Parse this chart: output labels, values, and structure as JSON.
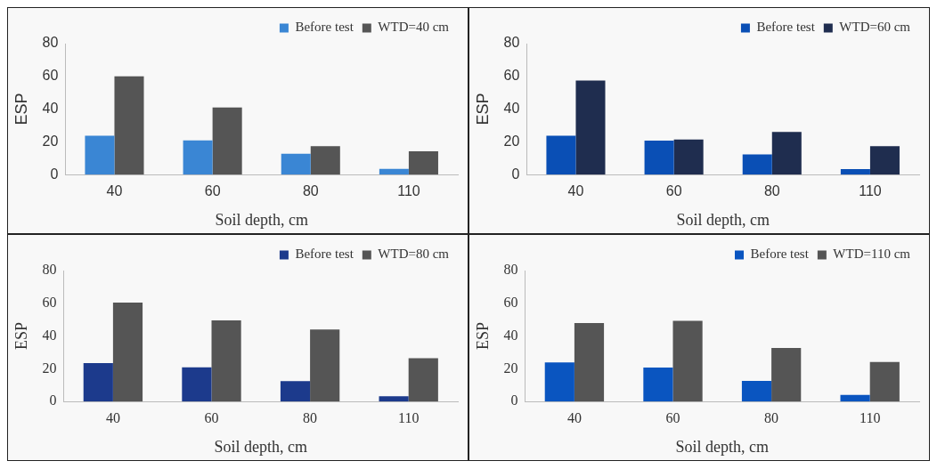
{
  "chart_data": [
    {
      "type": "bar",
      "categories": [
        "40",
        "60",
        "80",
        "110"
      ],
      "xlabel": "Soil depth, cm",
      "ylabel": "ESP",
      "ylim": [
        0,
        80
      ],
      "yticks": [
        0,
        20,
        40,
        60,
        80
      ],
      "grid": false,
      "legend": "top right",
      "series": [
        {
          "name": "Before test",
          "color": "#3a86d4",
          "values": [
            23.7,
            20.9,
            12.7,
            3.5
          ]
        },
        {
          "name": "WTD=40 cm",
          "color": "#555555",
          "values": [
            60,
            41,
            17.4,
            14.2
          ]
        }
      ]
    },
    {
      "type": "bar",
      "categories": [
        "40",
        "60",
        "80",
        "110"
      ],
      "xlabel": "Soil depth, cm",
      "ylabel": "ESP",
      "ylim": [
        0,
        80
      ],
      "yticks": [
        0,
        20,
        40,
        60,
        80
      ],
      "grid": false,
      "legend": "top right",
      "series": [
        {
          "name": "Before test",
          "color": "#0a4fb5",
          "values": [
            23.8,
            20.8,
            12.4,
            3.4
          ]
        },
        {
          "name": "WTD=60 cm",
          "color": "#1f2d4f",
          "values": [
            57.5,
            21.5,
            26,
            17.3
          ]
        }
      ]
    },
    {
      "type": "bar",
      "categories": [
        "40",
        "60",
        "80",
        "110"
      ],
      "xlabel": "Soil depth, cm",
      "ylabel": "ESP",
      "ylim": [
        0,
        80
      ],
      "yticks": [
        0,
        20,
        40,
        60,
        80
      ],
      "grid": false,
      "legend": "top right",
      "series": [
        {
          "name": "Before test",
          "color": "#1c3a8c",
          "values": [
            23.5,
            20.9,
            12.5,
            3.3
          ]
        },
        {
          "name": "WTD=80 cm",
          "color": "#555555",
          "values": [
            60.4,
            49.5,
            44,
            26.4
          ]
        }
      ]
    },
    {
      "type": "bar",
      "categories": [
        "40",
        "60",
        "80",
        "110"
      ],
      "xlabel": "Soil depth, cm",
      "ylabel": "ESP",
      "ylim": [
        0,
        80
      ],
      "yticks": [
        0,
        20,
        40,
        60,
        80
      ],
      "grid": false,
      "legend": "top right",
      "series": [
        {
          "name": "Before test",
          "color": "#0a55c0",
          "values": [
            23.9,
            20.8,
            12.6,
            4
          ]
        },
        {
          "name": "WTD=110 cm",
          "color": "#555555",
          "values": [
            47.9,
            49.3,
            32.7,
            24.2
          ]
        }
      ]
    }
  ]
}
